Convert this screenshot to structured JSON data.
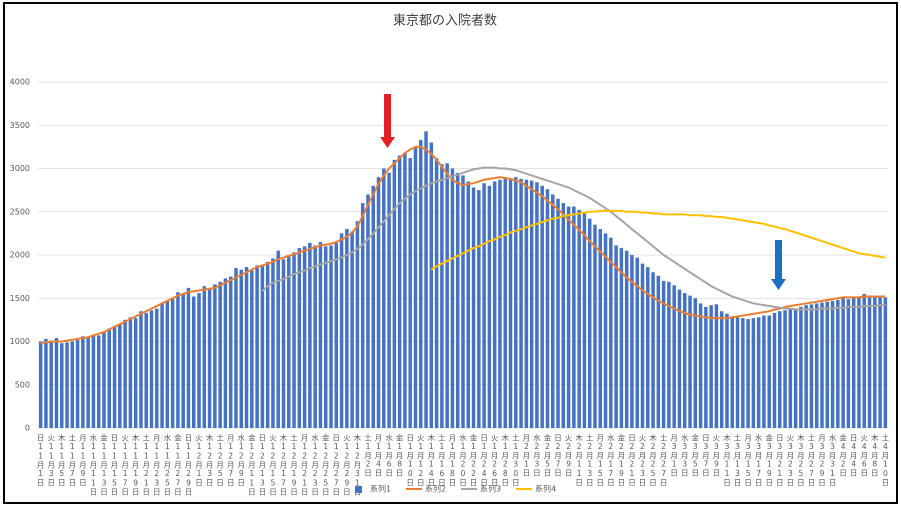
{
  "chart_data": {
    "type": "bar",
    "title": "東京都の入院者数",
    "categories": [
      "日11月1日",
      null,
      "火11月3日",
      null,
      "木11月5日",
      null,
      "土11月7日",
      null,
      "月11月9日",
      null,
      "水11月11日",
      null,
      "金11月13日",
      null,
      "日11月15日",
      null,
      "火11月17日",
      null,
      "木11月19日",
      null,
      "土11月21日",
      null,
      "月11月23日",
      null,
      "水11月25日",
      null,
      "金11月27日",
      null,
      "日11月29日",
      null,
      "火12月1日",
      null,
      "木12月3日",
      null,
      "土12月5日",
      null,
      "月12月7日",
      null,
      "水12月9日",
      null,
      "金12月11日",
      null,
      "日12月13日",
      null,
      "火12月15日",
      null,
      "木12月17日",
      null,
      "土12月19日",
      null,
      "月12月21日",
      null,
      "水12月23日",
      null,
      "金12月25日",
      null,
      "日12月27日",
      null,
      "火12月29日",
      null,
      "木12月31日",
      null,
      "土1月2日",
      null,
      "月1月4日",
      null,
      "水1月6日",
      null,
      "金1月8日",
      null,
      "日1月10日",
      null,
      "火1月12日",
      null,
      "木1月14日",
      null,
      "土1月16日",
      null,
      "月1月18日",
      null,
      "水1月20日",
      null,
      "金1月22日",
      null,
      "日1月24日",
      null,
      "火1月26日",
      null,
      "木1月28日",
      null,
      "土1月30日",
      null,
      "月2月1日",
      null,
      "水2月3日",
      null,
      "金2月5日",
      null,
      "日2月7日",
      null,
      "火2月9日",
      null,
      "木2月11日",
      null,
      "土2月13日",
      null,
      "月2月15日",
      null,
      "水2月17日",
      null,
      "金2月19日",
      null,
      "日2月21日",
      null,
      "火2月23日",
      null,
      "木2月25日",
      null,
      "土2月27日",
      null,
      "月3月1日",
      null,
      "水3月3日",
      null,
      "金3月5日",
      null,
      "日3月7日",
      null,
      "火3月9日",
      null,
      "木3月11日",
      null,
      "土3月13日",
      null,
      "月3月15日",
      null,
      "水3月17日",
      null,
      "金3月19日",
      null,
      "日3月21日",
      null,
      "火3月23日",
      null,
      "木3月25日",
      null,
      "土3月27日",
      null,
      "月3月29日",
      null,
      "水3月31日",
      null,
      "金4月2日",
      null,
      "日4月4日",
      null,
      "火4月6日",
      null,
      "木4月8日",
      null,
      "土4月10日"
    ],
    "series": [
      {
        "name": "系列1",
        "type": "bar",
        "color": "#4472c4",
        "values": [
          1000,
          1030,
          1010,
          1040,
          980,
          990,
          1000,
          1020,
          1060,
          1040,
          1080,
          1070,
          1110,
          1150,
          1180,
          1200,
          1250,
          1280,
          1270,
          1350,
          1330,
          1360,
          1380,
          1440,
          1470,
          1490,
          1570,
          1560,
          1620,
          1520,
          1560,
          1640,
          1610,
          1660,
          1690,
          1730,
          1750,
          1850,
          1830,
          1860,
          1820,
          1880,
          1870,
          1920,
          1960,
          2050,
          1950,
          2000,
          2030,
          2080,
          2100,
          2140,
          2110,
          2150,
          2100,
          2110,
          2140,
          2250,
          2300,
          2270,
          2390,
          2600,
          2700,
          2800,
          2900,
          3000,
          2950,
          3100,
          3150,
          3180,
          3120,
          3250,
          3330,
          3430,
          3300,
          3120,
          3050,
          3060,
          3000,
          2950,
          2920,
          2850,
          2780,
          2750,
          2830,
          2800,
          2850,
          2870,
          2890,
          2870,
          2900,
          2880,
          2870,
          2860,
          2840,
          2800,
          2760,
          2700,
          2650,
          2600,
          2560,
          2560,
          2520,
          2480,
          2420,
          2350,
          2300,
          2250,
          2200,
          2110,
          2080,
          2050,
          2000,
          1970,
          1900,
          1860,
          1800,
          1760,
          1700,
          1690,
          1650,
          1600,
          1560,
          1530,
          1500,
          1440,
          1400,
          1420,
          1430,
          1350,
          1320,
          1290,
          1280,
          1270,
          1260,
          1270,
          1280,
          1300,
          1300,
          1330,
          1350,
          1360,
          1370,
          1380,
          1400,
          1420,
          1430,
          1440,
          1450,
          1460,
          1470,
          1480,
          1500,
          1490,
          1510,
          1520,
          1550,
          1520,
          1520,
          1510,
          1510
        ]
      },
      {
        "name": "系列2",
        "type": "line",
        "color": "#ed7d31",
        "values": [
          980,
          990,
          1000,
          1000,
          1000,
          1010,
          1020,
          1030,
          1040,
          1050,
          1070,
          1090,
          1110,
          1140,
          1170,
          1200,
          1230,
          1260,
          1290,
          1320,
          1350,
          1380,
          1410,
          1440,
          1470,
          1500,
          1530,
          1550,
          1570,
          1580,
          1590,
          1600,
          1610,
          1620,
          1650,
          1680,
          1710,
          1740,
          1770,
          1800,
          1830,
          1860,
          1880,
          1900,
          1920,
          1950,
          1970,
          1990,
          2010,
          2030,
          2050,
          2070,
          2090,
          2110,
          2120,
          2130,
          2150,
          2180,
          2210,
          2260,
          2330,
          2450,
          2580,
          2700,
          2820,
          2920,
          3000,
          3060,
          3120,
          3180,
          3220,
          3250,
          3250,
          3220,
          3170,
          3100,
          3020,
          2940,
          2870,
          2830,
          2810,
          2820,
          2830,
          2850,
          2870,
          2880,
          2890,
          2900,
          2890,
          2880,
          2860,
          2840,
          2800,
          2760,
          2720,
          2680,
          2630,
          2580,
          2530,
          2470,
          2410,
          2350,
          2290,
          2230,
          2160,
          2100,
          2040,
          1980,
          1920,
          1860,
          1800,
          1740,
          1690,
          1640,
          1590,
          1550,
          1510,
          1470,
          1440,
          1410,
          1380,
          1350,
          1330,
          1310,
          1300,
          1290,
          1280,
          1270,
          1270,
          1270,
          1270,
          1280,
          1290,
          1300,
          1310,
          1320,
          1330,
          1340,
          1350,
          1370,
          1380,
          1400,
          1410,
          1420,
          1430,
          1440,
          1450,
          1460,
          1470,
          1480,
          1490,
          1500,
          1510,
          1510,
          1510,
          1510,
          1520,
          1520,
          1520,
          1520,
          1520
        ]
      },
      {
        "name": "系列3",
        "type": "line",
        "color": "#a5a5a5",
        "values": [
          null,
          null,
          null,
          null,
          null,
          null,
          null,
          null,
          null,
          null,
          null,
          null,
          null,
          null,
          null,
          null,
          null,
          null,
          null,
          null,
          null,
          null,
          null,
          null,
          null,
          null,
          null,
          null,
          null,
          null,
          null,
          null,
          null,
          null,
          null,
          null,
          null,
          null,
          null,
          null,
          null,
          null,
          1580,
          1640,
          1680,
          1700,
          1720,
          1750,
          1780,
          1800,
          1820,
          1850,
          1870,
          1890,
          1910,
          1930,
          1950,
          1970,
          2000,
          2030,
          2070,
          2120,
          2180,
          2250,
          2320,
          2390,
          2460,
          2530,
          2600,
          2650,
          2700,
          2740,
          2770,
          2800,
          2830,
          2850,
          2870,
          2890,
          2910,
          2930,
          2950,
          2970,
          2990,
          3000,
          3010,
          3010,
          3010,
          3000,
          3000,
          2990,
          2980,
          2960,
          2940,
          2920,
          2900,
          2880,
          2860,
          2840,
          2820,
          2800,
          2780,
          2750,
          2720,
          2690,
          2660,
          2620,
          2580,
          2540,
          2500,
          2450,
          2400,
          2350,
          2300,
          2250,
          2200,
          2150,
          2100,
          2050,
          2000,
          1960,
          1920,
          1880,
          1840,
          1800,
          1760,
          1720,
          1680,
          1640,
          1610,
          1580,
          1550,
          1520,
          1500,
          1480,
          1460,
          1440,
          1430,
          1420,
          1410,
          1400,
          1390,
          1380,
          1380,
          1370,
          1370,
          1370,
          1370,
          1370,
          1380,
          1380,
          1380,
          1390,
          1390,
          1400,
          1400,
          1400,
          1410,
          1410,
          1410,
          1420,
          1420
        ]
      },
      {
        "name": "系列4",
        "type": "line",
        "color": "#ffc000",
        "values": [
          null,
          null,
          null,
          null,
          null,
          null,
          null,
          null,
          null,
          null,
          null,
          null,
          null,
          null,
          null,
          null,
          null,
          null,
          null,
          null,
          null,
          null,
          null,
          null,
          null,
          null,
          null,
          null,
          null,
          null,
          null,
          null,
          null,
          null,
          null,
          null,
          null,
          null,
          null,
          null,
          null,
          null,
          null,
          null,
          null,
          null,
          null,
          null,
          null,
          null,
          null,
          null,
          null,
          null,
          null,
          null,
          null,
          null,
          null,
          null,
          null,
          null,
          null,
          null,
          null,
          null,
          null,
          null,
          null,
          null,
          null,
          null,
          null,
          null,
          1830,
          1870,
          1900,
          1930,
          1960,
          1990,
          2020,
          2050,
          2080,
          2100,
          2130,
          2160,
          2180,
          2210,
          2230,
          2260,
          2280,
          2300,
          2320,
          2340,
          2360,
          2380,
          2400,
          2420,
          2430,
          2450,
          2460,
          2470,
          2480,
          2490,
          2500,
          2500,
          2510,
          2510,
          2510,
          2510,
          2510,
          2500,
          2500,
          2500,
          2490,
          2490,
          2480,
          2480,
          2470,
          2470,
          2470,
          2470,
          2470,
          2460,
          2460,
          2460,
          2450,
          2450,
          2440,
          2440,
          2430,
          2420,
          2410,
          2400,
          2390,
          2380,
          2370,
          2360,
          2340,
          2330,
          2310,
          2300,
          2280,
          2260,
          2240,
          2220,
          2200,
          2180,
          2160,
          2140,
          2120,
          2100,
          2080,
          2060,
          2040,
          2020,
          2010,
          2000,
          1990,
          1980,
          1970
        ]
      }
    ],
    "ylim": [
      0,
      4000
    ],
    "yticks": [
      0,
      500,
      1000,
      1500,
      2000,
      2500,
      3000,
      3500,
      4000
    ],
    "grid": true,
    "legend": "bottom"
  }
}
